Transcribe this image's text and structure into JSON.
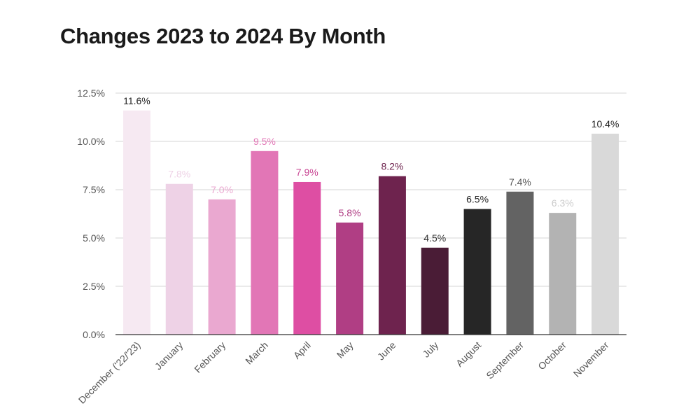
{
  "chart_data": {
    "type": "bar",
    "title": "Changes 2023 to 2024 By Month",
    "xlabel": "",
    "ylabel": "",
    "ylim": [
      0,
      12.5
    ],
    "yticks": [
      "0.0%",
      "2.5%",
      "5.0%",
      "7.5%",
      "10.0%",
      "12.5%"
    ],
    "ytick_values": [
      0,
      2.5,
      5,
      7.5,
      10,
      12.5
    ],
    "grid": true,
    "categories": [
      "December ('22/'23)",
      "January",
      "February",
      "March",
      "April",
      "May",
      "June",
      "July",
      "August",
      "September",
      "October",
      "November"
    ],
    "values": [
      11.6,
      7.8,
      7.0,
      9.5,
      7.9,
      5.8,
      8.2,
      4.5,
      6.5,
      7.4,
      6.3,
      10.4
    ],
    "data_labels": [
      "11.6%",
      "7.8%",
      "7.0%",
      "9.5%",
      "7.9%",
      "5.8%",
      "8.2%",
      "4.5%",
      "6.5%",
      "7.4%",
      "6.3%",
      "10.4%"
    ],
    "bar_colors": [
      "#f6e9f2",
      "#eed2e6",
      "#eaa8d0",
      "#e276b6",
      "#de4ea3",
      "#b03e84",
      "#6e234e",
      "#4a1c36",
      "#262626",
      "#636363",
      "#b3b3b3",
      "#d9d9d9"
    ],
    "label_colors": [
      "#222222",
      "#eed2e6",
      "#eaa8d0",
      "#e276b6",
      "#c84593",
      "#b03e84",
      "#6e234e",
      "#333333",
      "#222222",
      "#555555",
      "#cccccc",
      "#222222"
    ]
  }
}
